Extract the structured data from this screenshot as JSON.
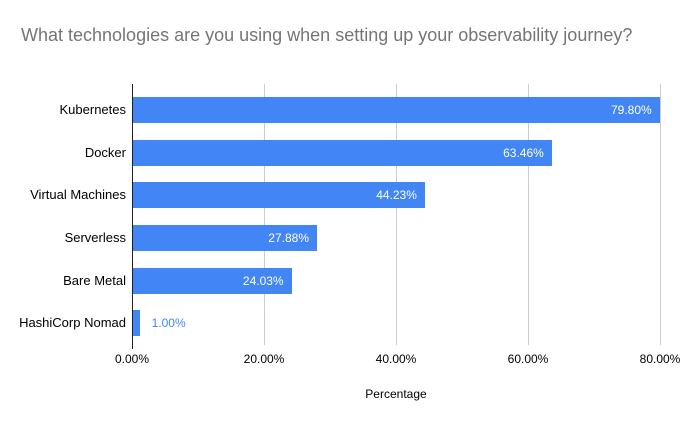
{
  "chart_data": {
    "type": "bar",
    "orientation": "horizontal",
    "title": "What technologies are you using when setting up your observability journey?",
    "xlabel": "Percentage",
    "categories": [
      "Kubernetes",
      "Docker",
      "Virtual Machines",
      "Serverless",
      "Bare Metal",
      "HashiCorp Nomad"
    ],
    "values": [
      79.8,
      63.46,
      44.23,
      27.88,
      24.03,
      1.0
    ],
    "value_labels": [
      "79.80%",
      "63.46%",
      "44.23%",
      "27.88%",
      "24.03%",
      "1.00%"
    ],
    "x_ticks": [
      "0.00%",
      "20.00%",
      "40.00%",
      "60.00%",
      "80.00%"
    ],
    "x_tick_values": [
      0,
      20,
      40,
      60,
      80
    ],
    "xlim": [
      0,
      81
    ],
    "grid": true,
    "legend": "none"
  },
  "colors": {
    "bar": "#4285f4",
    "title_text": "#757575",
    "gridline": "#cccccc",
    "axis_line": "#212121",
    "tick_text": "#000000",
    "category_text": "#000000",
    "xlabel_text": "#000000",
    "data_label_inside": "#ffffff",
    "data_label_outside": "#4285f4"
  }
}
